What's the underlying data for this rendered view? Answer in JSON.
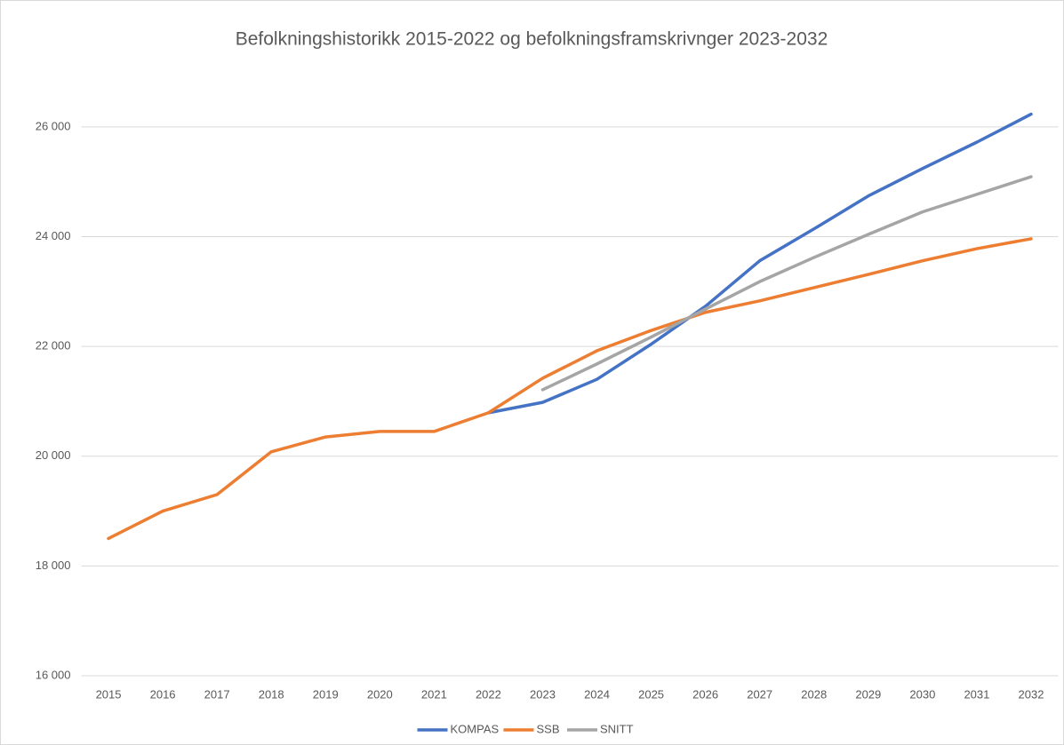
{
  "chart_data": {
    "type": "line",
    "title": "Befolkningshistorikk 2015-2022 og befolkningsframskrivnger 2023-2032",
    "categories": [
      "2015",
      "2016",
      "2017",
      "2018",
      "2019",
      "2020",
      "2021",
      "2022",
      "2023",
      "2024",
      "2025",
      "2026",
      "2027",
      "2028",
      "2029",
      "2030",
      "2031",
      "2032"
    ],
    "series": [
      {
        "name": "KOMPAS",
        "color": "#4472c4",
        "values": [
          null,
          null,
          null,
          null,
          null,
          null,
          null,
          20790,
          20980,
          21400,
          22040,
          22730,
          23560,
          24140,
          24740,
          25240,
          25720,
          26230
        ]
      },
      {
        "name": "SSB",
        "color": "#ed7d31",
        "values": [
          18500,
          19000,
          19300,
          20080,
          20350,
          20450,
          20450,
          20790,
          21420,
          21920,
          22290,
          22620,
          22830,
          23070,
          23310,
          23560,
          23780,
          23960
        ]
      },
      {
        "name": "SNITT",
        "color": "#a5a5a5",
        "values": [
          null,
          null,
          null,
          null,
          null,
          null,
          null,
          null,
          21210,
          21680,
          22170,
          22680,
          23180,
          23620,
          24040,
          24450,
          24770,
          25090
        ]
      }
    ],
    "ylim": [
      16000,
      27000
    ],
    "yticks": [
      {
        "value": 16000,
        "label": "16 000"
      },
      {
        "value": 18000,
        "label": "18 000"
      },
      {
        "value": 20000,
        "label": "20 000"
      },
      {
        "value": 22000,
        "label": "22 000"
      },
      {
        "value": 24000,
        "label": "24 000"
      },
      {
        "value": 26000,
        "label": "26 000"
      }
    ],
    "grid": true,
    "legend": "bottom"
  }
}
